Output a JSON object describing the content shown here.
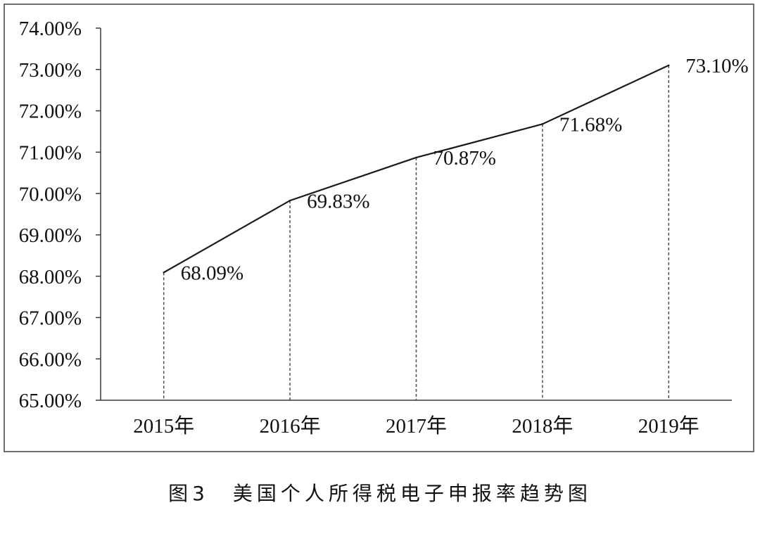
{
  "chart_data": {
    "type": "line",
    "title": "图3　美国个人所得税电子申报率趋势图",
    "xlabel": "",
    "ylabel": "",
    "categories": [
      "2015年",
      "2016年",
      "2017年",
      "2018年",
      "2019年"
    ],
    "series": [
      {
        "values": [
          68.09,
          69.83,
          70.87,
          71.68,
          73.1
        ],
        "data_labels": [
          "68.09%",
          "69.83%",
          "70.87%",
          "71.68%",
          "73.10%"
        ]
      }
    ],
    "ylim": [
      65,
      74
    ],
    "yticks": [
      65,
      66,
      67,
      68,
      69,
      70,
      71,
      72,
      73,
      74
    ],
    "ytick_labels": [
      "65.00%",
      "66.00%",
      "67.00%",
      "68.00%",
      "69.00%",
      "70.00%",
      "71.00%",
      "72.00%",
      "73.00%",
      "74.00%"
    ],
    "grid": false,
    "legend": "none",
    "drop_lines": "dashed",
    "colors": {
      "line": "#1a1a1a",
      "drop_lines": "#4d4d4d",
      "axes": "#3a3a3a"
    }
  }
}
